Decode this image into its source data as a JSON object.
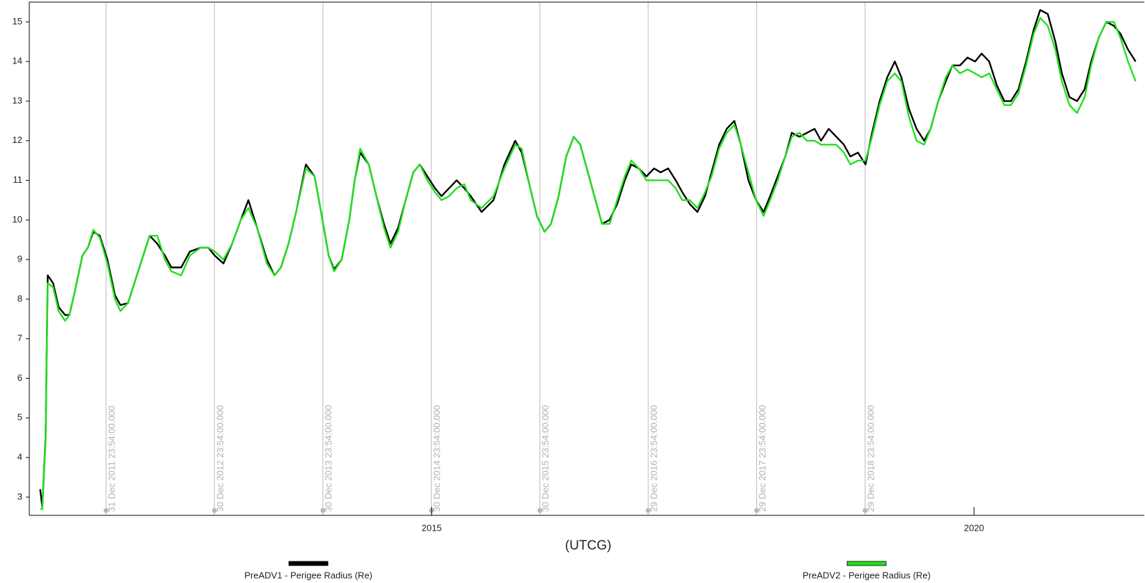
{
  "chart_data": {
    "type": "line",
    "x_label": "(UTCG)",
    "xlim": [
      2011.29,
      2021.57
    ],
    "ylim": [
      2.54,
      15.5
    ],
    "xticks": [
      2015,
      2020
    ],
    "yticks": [
      3,
      4,
      5,
      6,
      7,
      8,
      9,
      10,
      11,
      12,
      13,
      14,
      15
    ],
    "annotations": [
      {
        "x": 2011.998,
        "label": "31 Dec 2011 23:54:00.000"
      },
      {
        "x": 2012.997,
        "label": "30 Dec 2012 23:54:00.000"
      },
      {
        "x": 2013.997,
        "label": "30 Dec 2013 23:54:00.000"
      },
      {
        "x": 2014.997,
        "label": "30 Dec 2014 23:54:00.000"
      },
      {
        "x": 2015.997,
        "label": "30 Dec 2015 23:54:00.000"
      },
      {
        "x": 2016.996,
        "label": "29 Dec 2016 23:54:00.000"
      },
      {
        "x": 2017.996,
        "label": "29 Dec 2017 23:54:00.000"
      },
      {
        "x": 2018.996,
        "label": "29 Dec 2018 23:54:00.000"
      }
    ],
    "x": [
      2011.39,
      2011.41,
      2011.44,
      2011.46,
      2011.51,
      2011.56,
      2011.62,
      2011.66,
      2011.71,
      2011.78,
      2011.83,
      2011.88,
      2011.94,
      2012.01,
      2012.08,
      2012.13,
      2012.2,
      2012.27,
      2012.34,
      2012.4,
      2012.47,
      2012.54,
      2012.6,
      2012.69,
      2012.77,
      2012.87,
      2012.94,
      2013.0,
      2013.08,
      2013.16,
      2013.24,
      2013.31,
      2013.39,
      2013.48,
      2013.55,
      2013.61,
      2013.68,
      2013.75,
      2013.84,
      2013.92,
      2013.98,
      2014.05,
      2014.1,
      2014.17,
      2014.24,
      2014.29,
      2014.34,
      2014.42,
      2014.49,
      2014.56,
      2014.62,
      2014.69,
      2014.76,
      2014.83,
      2014.89,
      2014.96,
      2015.03,
      2015.09,
      2015.16,
      2015.23,
      2015.3,
      2015.36,
      2015.46,
      2015.57,
      2015.67,
      2015.77,
      2015.83,
      2015.9,
      2015.97,
      2016.04,
      2016.1,
      2016.17,
      2016.24,
      2016.31,
      2016.37,
      2016.44,
      2016.51,
      2016.57,
      2016.64,
      2016.71,
      2016.78,
      2016.84,
      2016.91,
      2016.98,
      2017.05,
      2017.11,
      2017.18,
      2017.25,
      2017.31,
      2017.38,
      2017.45,
      2017.52,
      2017.58,
      2017.65,
      2017.72,
      2017.79,
      2017.85,
      2017.92,
      2017.99,
      2018.06,
      2018.12,
      2018.19,
      2018.26,
      2018.32,
      2018.39,
      2018.46,
      2018.53,
      2018.59,
      2018.66,
      2018.73,
      2018.8,
      2018.86,
      2018.93,
      2019.0,
      2019.06,
      2019.13,
      2019.2,
      2019.27,
      2019.33,
      2019.4,
      2019.47,
      2019.54,
      2019.6,
      2019.67,
      2019.74,
      2019.8,
      2019.87,
      2019.94,
      2020.01,
      2020.07,
      2020.14,
      2020.21,
      2020.28,
      2020.34,
      2020.41,
      2020.48,
      2020.55,
      2020.61,
      2020.68,
      2020.75,
      2020.81,
      2020.88,
      2020.95,
      2021.02,
      2021.08,
      2021.15,
      2021.22,
      2021.29,
      2021.35,
      2021.42,
      2021.49
    ],
    "series": [
      {
        "name": "PreADV1 - Perigee Radius (Re)",
        "color": "#000000",
        "values": [
          3.2,
          2.75,
          4.5,
          8.6,
          8.4,
          7.8,
          7.6,
          7.6,
          8.2,
          9.1,
          9.3,
          9.7,
          9.6,
          9.0,
          8.1,
          7.85,
          7.9,
          8.5,
          9.1,
          9.6,
          9.4,
          9.1,
          8.8,
          8.8,
          9.2,
          9.3,
          9.3,
          9.1,
          8.9,
          9.4,
          10.0,
          10.5,
          9.8,
          9.0,
          8.6,
          8.8,
          9.4,
          10.2,
          11.4,
          11.1,
          10.2,
          9.1,
          8.75,
          9.0,
          10.0,
          11.0,
          11.7,
          11.4,
          10.6,
          9.9,
          9.4,
          9.8,
          10.5,
          11.2,
          11.4,
          11.1,
          10.8,
          10.6,
          10.8,
          11.0,
          10.8,
          10.6,
          10.2,
          10.5,
          11.4,
          12.0,
          11.7,
          10.9,
          10.1,
          9.7,
          9.9,
          10.6,
          11.6,
          12.1,
          11.9,
          11.2,
          10.5,
          9.9,
          10.0,
          10.4,
          11.0,
          11.4,
          11.3,
          11.1,
          11.3,
          11.2,
          11.3,
          11.0,
          10.7,
          10.4,
          10.2,
          10.6,
          11.2,
          11.9,
          12.3,
          12.5,
          11.9,
          11.0,
          10.5,
          10.2,
          10.6,
          11.1,
          11.6,
          12.2,
          12.1,
          12.2,
          12.3,
          12.0,
          12.3,
          12.1,
          11.9,
          11.6,
          11.7,
          11.4,
          12.2,
          13.0,
          13.6,
          14.0,
          13.6,
          12.8,
          12.3,
          12.0,
          12.3,
          13.0,
          13.5,
          13.9,
          13.9,
          14.1,
          14.0,
          14.2,
          14.0,
          13.4,
          13.0,
          13.0,
          13.3,
          14.0,
          14.8,
          15.3,
          15.2,
          14.5,
          13.7,
          13.1,
          13.0,
          13.3,
          14.0,
          14.6,
          15.0,
          14.9,
          14.7,
          14.3,
          14.0
        ]
      },
      {
        "name": "PreADV2 - Perigee Radius (Re)",
        "color": "#22e01e",
        "values": [
          2.7,
          2.7,
          4.4,
          8.4,
          8.3,
          7.7,
          7.45,
          7.6,
          8.2,
          9.1,
          9.3,
          9.75,
          9.55,
          8.9,
          8.0,
          7.7,
          7.9,
          8.5,
          9.1,
          9.6,
          9.6,
          9.0,
          8.7,
          8.6,
          9.1,
          9.3,
          9.3,
          9.2,
          9.0,
          9.4,
          10.0,
          10.3,
          9.8,
          8.9,
          8.6,
          8.8,
          9.4,
          10.2,
          11.3,
          11.1,
          10.2,
          9.1,
          8.7,
          9.0,
          10.0,
          11.0,
          11.8,
          11.4,
          10.6,
          9.8,
          9.3,
          9.7,
          10.5,
          11.2,
          11.4,
          11.0,
          10.7,
          10.5,
          10.6,
          10.8,
          10.9,
          10.5,
          10.3,
          10.6,
          11.3,
          11.9,
          11.8,
          10.9,
          10.1,
          9.7,
          9.9,
          10.6,
          11.6,
          12.1,
          11.9,
          11.2,
          10.5,
          9.9,
          9.9,
          10.5,
          11.1,
          11.5,
          11.3,
          11.0,
          11.0,
          11.0,
          11.0,
          10.8,
          10.5,
          10.5,
          10.3,
          10.7,
          11.1,
          11.8,
          12.2,
          12.4,
          11.9,
          11.2,
          10.5,
          10.1,
          10.5,
          11.0,
          11.6,
          12.1,
          12.2,
          12.0,
          12.0,
          11.9,
          11.9,
          11.9,
          11.7,
          11.4,
          11.5,
          11.5,
          12.1,
          12.9,
          13.5,
          13.7,
          13.5,
          12.6,
          12.0,
          11.9,
          12.3,
          13.0,
          13.6,
          13.9,
          13.7,
          13.8,
          13.7,
          13.6,
          13.7,
          13.3,
          12.9,
          12.9,
          13.2,
          13.9,
          14.7,
          15.1,
          14.9,
          14.3,
          13.5,
          12.9,
          12.7,
          13.1,
          13.9,
          14.6,
          15.0,
          15.0,
          14.6,
          14.0,
          13.5
        ]
      }
    ]
  }
}
